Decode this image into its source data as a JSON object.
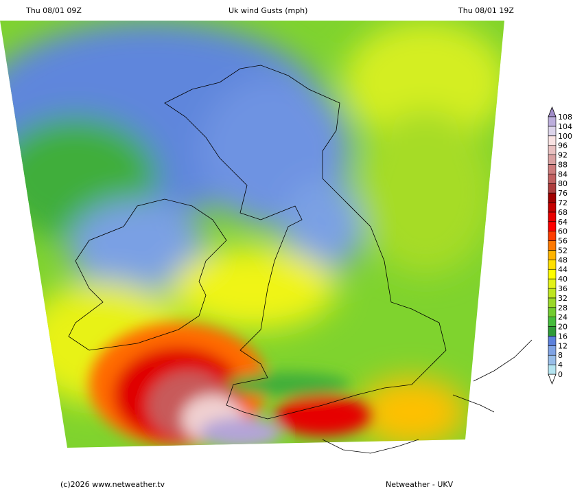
{
  "header": {
    "left_time": "Thu 08/01 09Z",
    "title": "Uk wind Gusts (mph)",
    "right_time": "Thu 08/01 19Z"
  },
  "footer": {
    "copyright": "(c)2026 www.netweather.tv",
    "model": "Netweather - UKV"
  },
  "legend": {
    "unit": "mph",
    "labels": [
      "0",
      "4",
      "8",
      "12",
      "16",
      "20",
      "24",
      "28",
      "32",
      "36",
      "40",
      "44",
      "48",
      "52",
      "56",
      "60",
      "64",
      "68",
      "72",
      "76",
      "80",
      "84",
      "88",
      "92",
      "96",
      "100",
      "104",
      "108"
    ],
    "colors": [
      "#b4e4f0",
      "#98bde8",
      "#7fa3e4",
      "#5b80dc",
      "#2f9a38",
      "#45bc3c",
      "#72cc30",
      "#9ad828",
      "#bee620",
      "#e2f218",
      "#ffff00",
      "#ffe000",
      "#ffb400",
      "#ff7800",
      "#ff3c00",
      "#ff0000",
      "#e80000",
      "#c40000",
      "#a00000",
      "#ac3c3c",
      "#c06060",
      "#cc7c7c",
      "#d8a0a0",
      "#e8c0c0",
      "#f8e2e2",
      "#dcd4ea",
      "#bcaedc"
    ],
    "over_color": "#a08cc8",
    "under_color": "#ffffff"
  }
}
